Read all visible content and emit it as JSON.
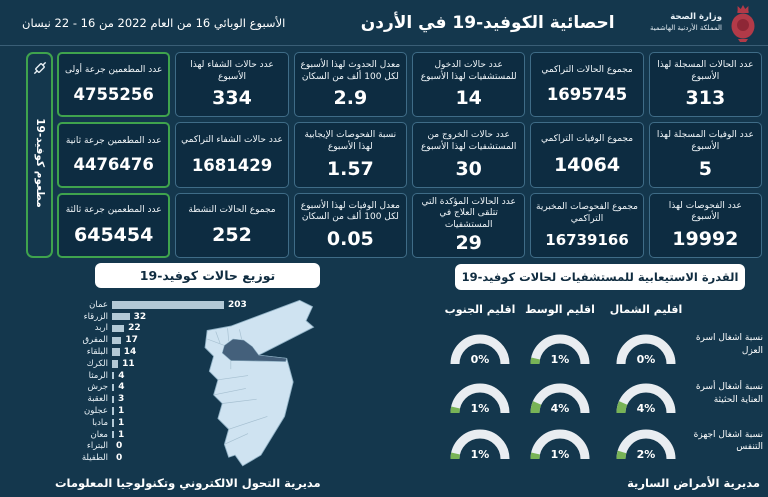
{
  "header": {
    "title": "احصائية الكوفيد-19 في الأردن",
    "subtitle": "الأسبوع الوبائي 16 من العام 2022 من 16 - 22 نيسان",
    "ministry_line1": "وزارة الصحة",
    "ministry_line2": "المملكة الأردنية الهاشمية"
  },
  "vaccination": {
    "sidebar_label": "مطعوم كوفيد-19",
    "cards": [
      {
        "label": "عدد المطعمين جرعة أولى",
        "value": "4755256"
      },
      {
        "label": "عدد المطعمين جرعة ثانية",
        "value": "4476476"
      },
      {
        "label": "عدد المطعمين جرعة ثالثة",
        "value": "645454"
      }
    ]
  },
  "stats": {
    "columns": [
      [
        {
          "label": "عدد الحالات المسجلة لهذا الأسبوع",
          "value": "313"
        },
        {
          "label": "عدد الوفيات المسجلة لهذا الأسبوع",
          "value": "5"
        },
        {
          "label": "عدد الفحوصات لهذا الأسبوع",
          "value": "19992"
        }
      ],
      [
        {
          "label": "مجموع الحالات التراكمي",
          "value": "1695745"
        },
        {
          "label": "مجموع الوفيات التراكمي",
          "value": "14064"
        },
        {
          "label": "مجموع الفحوصات المخبرية التراكمي",
          "value": "16739166"
        }
      ],
      [
        {
          "label": "عدد حالات الدخول للمستشفيات لهذا الأسبوع",
          "value": "14"
        },
        {
          "label": "عدد حالات الخروج من المستشفيات لهذا الأسبوع",
          "value": "30"
        },
        {
          "label": "عدد الحالات المؤكدة التي تتلقى العلاج في المستشفيات",
          "value": "29"
        }
      ],
      [
        {
          "label": "معدل الحدوث لهذا الأسبوع لكل 100 ألف من السكان",
          "value": "2.9"
        },
        {
          "label": "نسبة الفحوصات الإيجابية لهذا الأسبوع",
          "value": "1.57"
        },
        {
          "label": "معدل الوفيات لهذا الأسبوع لكل 100 ألف من السكان",
          "value": "0.05"
        }
      ],
      [
        {
          "label": "عدد حالات الشفاء لهذا الأسبوع",
          "value": "334"
        },
        {
          "label": "عدد حالات الشفاء التراكمي",
          "value": "1681429"
        },
        {
          "label": "مجموع الحالات النشطة",
          "value": "252"
        }
      ]
    ]
  },
  "footer": {
    "left": "مديرية التحول الالكتروني وتكنولوجيا المعلومات",
    "right": "مديرية الأمراض السارية"
  },
  "colors": {
    "background": "#14374d",
    "card": "#0d2c41",
    "card_border": "#4a7d9b",
    "green_accent": "#3fa34d",
    "bar": "#b3c9d6",
    "map_fill": "#cfe3f1",
    "map_highlight": "#44607b",
    "gauge_arc": "#e9edf1",
    "gauge_green": "#78b356",
    "pill_bg": "#ffffff",
    "pill_text": "#0f2c40",
    "logo_red": "#b23a48"
  },
  "chart_data": [
    {
      "type": "bar",
      "orientation": "horizontal",
      "title": "توزيع حالات كوفيد-19",
      "categories": [
        "عمان",
        "الزرقاء",
        "اربد",
        "المفرق",
        "البلقاء",
        "الكرك",
        "الرمثا",
        "جرش",
        "العقبة",
        "عجلون",
        "مادبا",
        "معان",
        "البتراء",
        "الطفيلة"
      ],
      "values": [
        203,
        32,
        22,
        17,
        14,
        11,
        4,
        4,
        3,
        1,
        1,
        1,
        0,
        0
      ],
      "xlabel": "",
      "ylabel": "",
      "xlim": [
        0,
        203
      ],
      "grid": false,
      "highlighted_map_region": "الزرقاء"
    },
    {
      "type": "table",
      "subtype": "gauges",
      "title": "القدرة الاستيعابية للمستشفيات لحالات كوفيد-19",
      "columns": [
        "اقليم الشمال",
        "اقليم الوسط",
        "اقليم الجنوب"
      ],
      "unit": "%",
      "rows": [
        {
          "label": "نسبة اشغال اسرة العزل",
          "values": [
            0,
            1,
            0
          ]
        },
        {
          "label": "نسبة أشغال أسرة العناية الحثيثة",
          "values": [
            4,
            4,
            1
          ]
        },
        {
          "label": "نسبة اشغال اجهزة التنفس",
          "values": [
            2,
            1,
            1
          ]
        }
      ]
    }
  ]
}
